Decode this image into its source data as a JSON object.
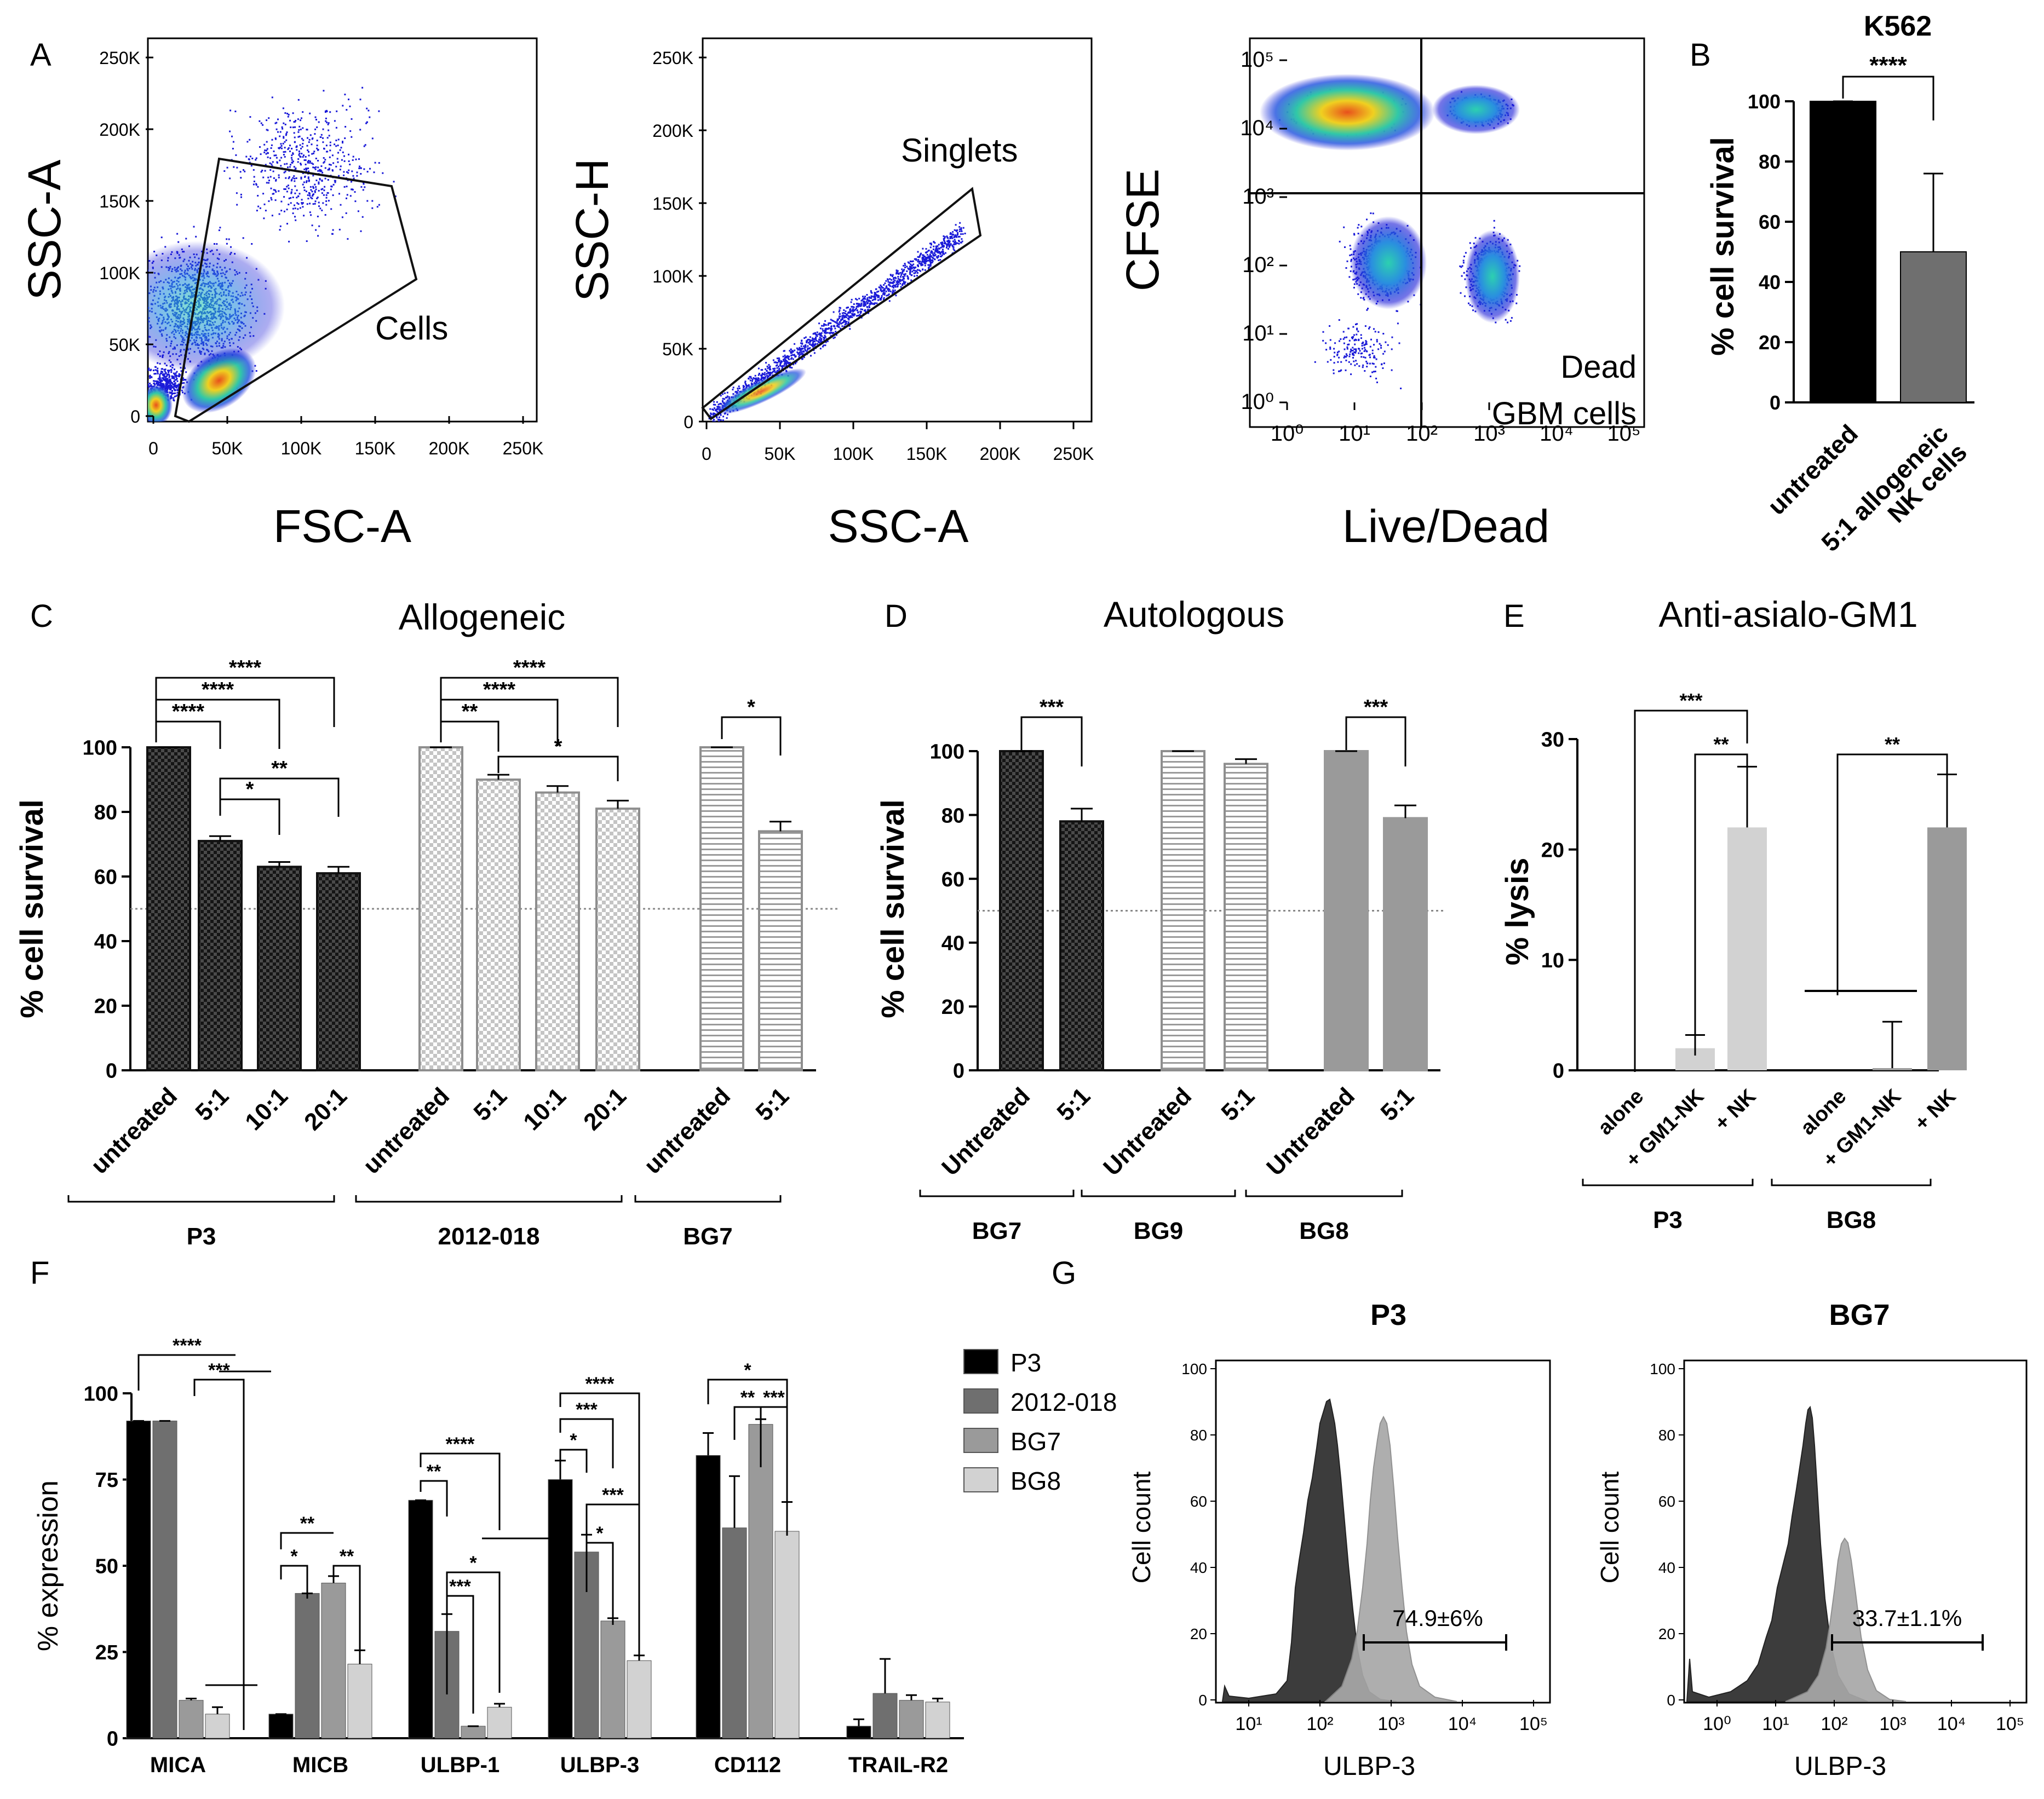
{
  "colors": {
    "black": "#000000",
    "dark_gray": "#6f6f6f",
    "mid_gray": "#9a9a9a",
    "light_gray": "#d2d2d2",
    "flow_low": "#1a1ad8",
    "flow_mid": "#18c8c8",
    "flow_high": "#e86a1c",
    "gate": "#111111",
    "dotted": "#888888"
  },
  "panel_letters": [
    "A",
    "B",
    "C",
    "D",
    "E",
    "F",
    "G"
  ],
  "panel_a": {
    "plots": [
      {
        "id": "fsc-ssc",
        "xlabel": "FSC-A",
        "ylabel": "SSC-A",
        "x_ticks": [
          "0",
          "50K",
          "100K",
          "150K",
          "200K",
          "250K"
        ],
        "y_ticks": [
          "0",
          "50K",
          "100K",
          "150K",
          "200K",
          "250K"
        ],
        "gate_label": "Cells"
      },
      {
        "id": "ssca-ssch",
        "xlabel": "SSC-A",
        "ylabel": "SSC-H",
        "x_ticks": [
          "0",
          "50K",
          "100K",
          "150K",
          "200K",
          "250K"
        ],
        "y_ticks": [
          "0",
          "50K",
          "100K",
          "150K",
          "200K",
          "250K"
        ],
        "gate_label": "Singlets"
      },
      {
        "id": "livedead-cfse",
        "xlabel": "Live/Dead",
        "ylabel": "CFSE",
        "x_ticks": [
          "10⁰",
          "10¹",
          "10²",
          "10³",
          "10⁴",
          "10⁵"
        ],
        "y_ticks": [
          "10⁰",
          "10¹",
          "10²",
          "10³",
          "10⁴",
          "10⁵"
        ],
        "quadrant_label_1": "Dead",
        "quadrant_label_2": "GBM cells"
      }
    ]
  },
  "chart_data": [
    {
      "panel": "B",
      "type": "bar",
      "title": "K562",
      "ylabel": "% cell survival",
      "ylim": [
        0,
        100
      ],
      "y_ticks": [
        "0",
        "20",
        "40",
        "60",
        "80",
        "100"
      ],
      "categories": [
        "untreated",
        "5:1 allogeneic NK cells"
      ],
      "category_lines": [
        [
          "untreated"
        ],
        [
          "5:1 allogeneic",
          "NK cells"
        ]
      ],
      "values": [
        100,
        50
      ],
      "errors": [
        0,
        26
      ],
      "fills": [
        "black",
        "dark_gray"
      ],
      "significance": [
        "****"
      ]
    },
    {
      "panel": "C",
      "type": "bar",
      "title": "Allogeneic",
      "ylabel": "% cell survival",
      "ylim": [
        0,
        100
      ],
      "y_ticks": [
        "0",
        "20",
        "40",
        "60",
        "80",
        "100"
      ],
      "reference_line": 50,
      "categories": [
        "untreated",
        "5:1",
        "10:1",
        "20:1",
        "untreated",
        "5:1",
        "10:1",
        "20:1",
        "untreated",
        "5:1"
      ],
      "groups": [
        "P3",
        "2012-018",
        "BG7"
      ],
      "values": [
        100,
        71,
        63,
        61,
        100,
        90,
        86,
        81,
        100,
        74
      ],
      "errors": [
        0,
        1.5,
        1.5,
        2,
        0,
        1.5,
        2,
        2.5,
        0,
        3
      ],
      "patterns": [
        "checker-dark",
        "checker-dark",
        "checker-dark",
        "checker-dark",
        "checker-light",
        "checker-light",
        "checker-light",
        "checker-light",
        "stripe",
        "stripe"
      ],
      "significance": [
        "****",
        "****",
        "****",
        "**",
        "*",
        "****",
        "****",
        "**",
        "*",
        "*"
      ]
    },
    {
      "panel": "D",
      "type": "bar",
      "title": "Autologous",
      "ylabel": "% cell survival",
      "ylim": [
        0,
        100
      ],
      "y_ticks": [
        "0",
        "20",
        "40",
        "60",
        "80",
        "100"
      ],
      "reference_line": 50,
      "categories": [
        "Untreated",
        "5:1",
        "Untreated",
        "5:1",
        "Untreated",
        "5:1"
      ],
      "groups": [
        "BG7",
        "BG9",
        "BG8"
      ],
      "values": [
        100,
        78,
        100,
        96,
        100,
        79
      ],
      "errors": [
        0,
        4,
        0,
        1.5,
        0,
        4
      ],
      "patterns": [
        "checker-dark",
        "checker-dark",
        "stripe",
        "stripe",
        "solid-gray",
        "solid-gray"
      ],
      "significance": [
        "***",
        "***"
      ]
    },
    {
      "panel": "E",
      "type": "bar",
      "title": "Anti-asialo-GM1",
      "ylabel": "% lysis",
      "ylim": [
        0,
        30
      ],
      "y_ticks": [
        "0",
        "10",
        "20",
        "30"
      ],
      "categories": [
        "alone",
        "+ GM1-NK",
        "+ NK",
        "alone",
        "+ GM1-NK",
        "+ NK"
      ],
      "groups": [
        "P3",
        "BG8"
      ],
      "values": [
        0,
        2,
        22,
        0,
        0.2,
        22
      ],
      "errors": [
        0,
        1.2,
        5.5,
        0,
        4.2,
        4.8
      ],
      "fills": [
        "light_gray",
        "light_gray",
        "light_gray",
        "mid_gray",
        "mid_gray",
        "mid_gray"
      ],
      "significance": [
        "***",
        "**",
        "**"
      ]
    },
    {
      "panel": "F",
      "type": "bar",
      "ylabel": "% expression",
      "ylim": [
        0,
        100
      ],
      "y_ticks": [
        "0",
        "25",
        "50",
        "75",
        "100"
      ],
      "categories": [
        "MICA",
        "MICB",
        "ULBP-1",
        "ULBP-3",
        "CD112",
        "TRAIL-R2"
      ],
      "series": [
        {
          "name": "P3",
          "values": [
            92,
            7,
            69,
            75,
            82,
            3.5
          ],
          "errors": [
            0,
            0,
            0,
            5.5,
            6.5,
            2
          ]
        },
        {
          "name": "2012-018",
          "values": [
            92,
            42,
            31,
            54,
            61,
            13
          ],
          "errors": [
            0,
            0,
            5,
            5,
            15,
            10
          ]
        },
        {
          "name": "BG7",
          "values": [
            11,
            45,
            3.5,
            34,
            91,
            11
          ],
          "errors": [
            0.5,
            2,
            0,
            0.8,
            1.5,
            1.5
          ]
        },
        {
          "name": "BG8",
          "values": [
            7,
            21.5,
            9,
            22.5,
            60,
            10.5
          ],
          "errors": [
            2,
            4,
            1,
            1.5,
            8.5,
            1
          ]
        }
      ],
      "legend": [
        "P3",
        "2012-018",
        "BG7",
        "BG8"
      ],
      "significance": [
        "****",
        "***",
        "**",
        "*",
        "**",
        "****",
        "**",
        "***",
        "*",
        "***",
        "****",
        "*",
        "***",
        "*",
        "***",
        "*",
        "**",
        "***"
      ]
    },
    {
      "panel": "G",
      "type": "histogram",
      "plots": [
        {
          "title": "P3",
          "ylabel": "Cell count",
          "xlabel": "ULBP-3",
          "y_ticks": [
            "0",
            "20",
            "40",
            "60",
            "80",
            "100"
          ],
          "x_ticks": [
            "10¹",
            "10²",
            "10³",
            "10⁴",
            "10⁵"
          ],
          "gate_label": "74.9±6%"
        },
        {
          "title": "BG7",
          "ylabel": "Cell count",
          "xlabel": "ULBP-3",
          "y_ticks": [
            "0",
            "20",
            "40",
            "60",
            "80",
            "100"
          ],
          "x_ticks": [
            "10⁰",
            "10¹",
            "10²",
            "10³",
            "10⁴",
            "10⁵"
          ],
          "gate_label": "33.7±1.1%"
        }
      ]
    }
  ]
}
